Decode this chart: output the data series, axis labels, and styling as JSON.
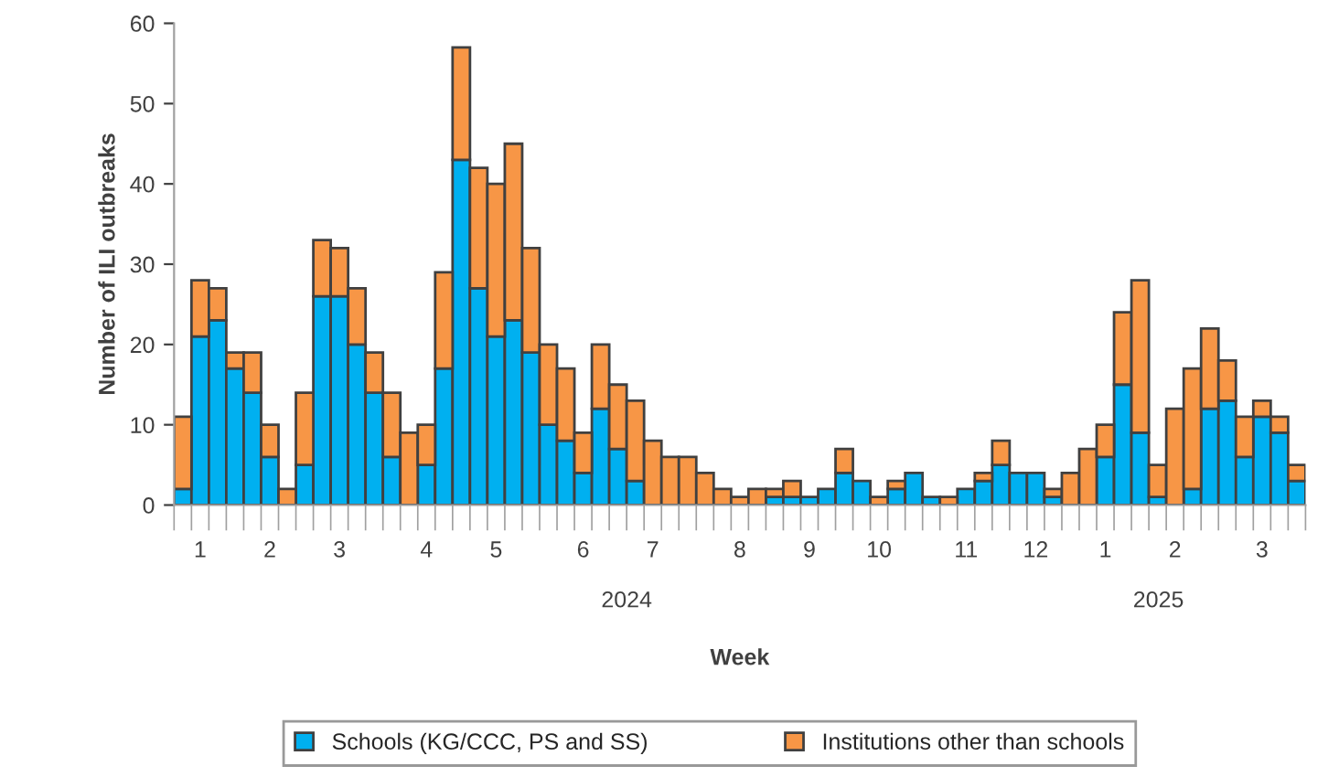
{
  "chart_data": {
    "type": "bar",
    "stacked": true,
    "xlabel": "Week",
    "ylabel": "Number of ILI outbreaks",
    "categories": [
      null,
      "1",
      null,
      null,
      null,
      "2",
      null,
      null,
      null,
      "3",
      null,
      null,
      null,
      null,
      "4",
      null,
      null,
      null,
      "5",
      null,
      null,
      null,
      null,
      "6",
      null,
      null,
      null,
      "7",
      null,
      null,
      null,
      null,
      "8",
      null,
      null,
      null,
      "9",
      null,
      null,
      null,
      "10",
      null,
      null,
      null,
      null,
      "11",
      null,
      null,
      null,
      "12",
      null,
      null,
      null,
      "1",
      null,
      null,
      null,
      "2",
      null,
      null,
      null,
      null,
      "3",
      null,
      null
    ],
    "ylim": [
      0,
      60
    ],
    "yticks": [
      0,
      10,
      20,
      30,
      40,
      50,
      60
    ],
    "annotations": [
      "2024",
      "2025"
    ],
    "legend": "bottom",
    "series": [
      {
        "name": "Schools (KG/CCC, PS and SS)",
        "color": "#00b0f0",
        "values": [
          2,
          21,
          23,
          17,
          14,
          6,
          0,
          5,
          26,
          26,
          20,
          14,
          6,
          0,
          5,
          17,
          43,
          27,
          21,
          23,
          19,
          10,
          8,
          4,
          12,
          7,
          3,
          0,
          0,
          0,
          0,
          0,
          0,
          0,
          1,
          1,
          1,
          2,
          4,
          3,
          0,
          2,
          4,
          1,
          0,
          2,
          3,
          5,
          4,
          4,
          1,
          0,
          0,
          6,
          15,
          9,
          1,
          0,
          2,
          12,
          13,
          6,
          11,
          9,
          3
        ]
      },
      {
        "name": "Institutions other than schools",
        "color": "#f79646",
        "values": [
          9,
          7,
          4,
          2,
          5,
          4,
          2,
          9,
          7,
          6,
          7,
          5,
          8,
          9,
          5,
          12,
          14,
          15,
          19,
          22,
          13,
          10,
          9,
          5,
          8,
          8,
          10,
          8,
          6,
          6,
          4,
          2,
          1,
          2,
          1,
          2,
          0,
          0,
          3,
          0,
          1,
          1,
          0,
          0,
          1,
          0,
          1,
          3,
          0,
          0,
          1,
          4,
          7,
          4,
          9,
          19,
          4,
          12,
          15,
          10,
          5,
          5,
          2,
          2,
          2
        ]
      }
    ]
  }
}
